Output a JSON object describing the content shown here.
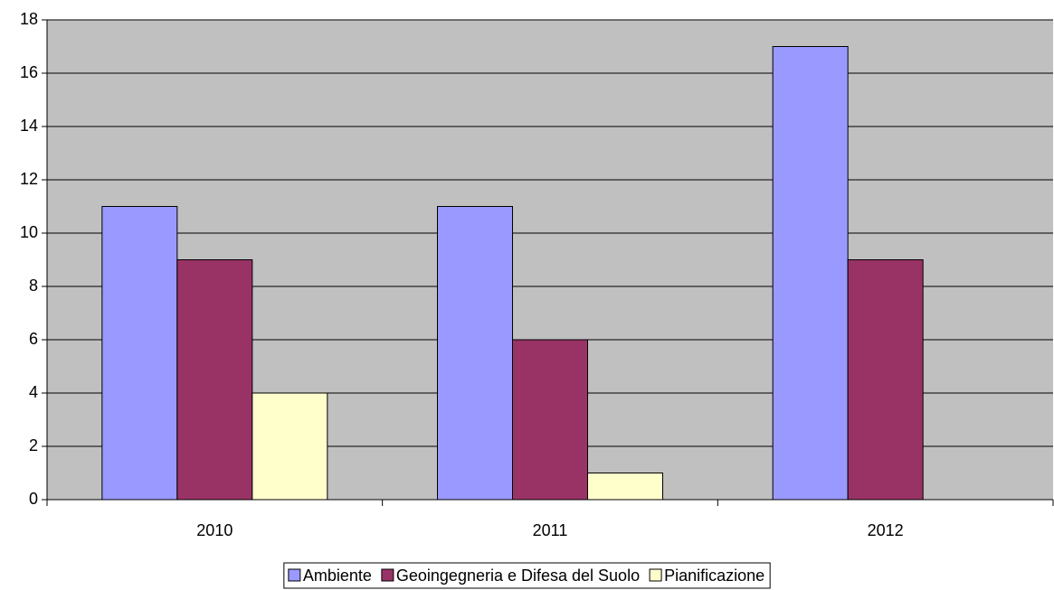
{
  "chart_data": {
    "type": "bar",
    "categories": [
      "2010",
      "2011",
      "2012"
    ],
    "series": [
      {
        "name": "Ambiente",
        "color": "#9999ff",
        "values": [
          11,
          11,
          17
        ]
      },
      {
        "name": "Geoingegneria e Difesa del Suolo",
        "color": "#993366",
        "values": [
          9,
          6,
          9
        ]
      },
      {
        "name": "Pianificazione",
        "color": "#ffffcc",
        "values": [
          4,
          1,
          0
        ]
      }
    ],
    "ylim": [
      0,
      18
    ],
    "yticks": [
      0,
      2,
      4,
      6,
      8,
      10,
      12,
      14,
      16,
      18
    ],
    "grid": true,
    "plot_background": "#c0c0c0",
    "legend": "bottom"
  }
}
